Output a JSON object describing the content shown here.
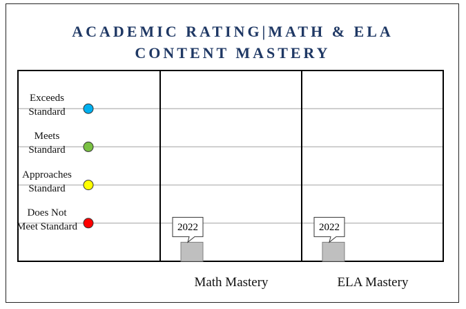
{
  "chart_data": {
    "type": "bar",
    "title": "ACADEMIC RATING|MATH & ELA CONTENT MASTERY",
    "categories": [
      "Math Mastery",
      "ELA Mastery"
    ],
    "series": [
      {
        "name": "2022",
        "color": "#bfbfbf",
        "values": [
          0.5,
          0.5
        ]
      }
    ],
    "ylim": [
      0,
      5
    ],
    "yticks": [
      {
        "value": 1,
        "label": "Does Not Meet Standard"
      },
      {
        "value": 2,
        "label": "Approaches Standard"
      },
      {
        "value": 3,
        "label": "Meets Standard"
      },
      {
        "value": 4,
        "label": "Exceeds Standard"
      }
    ],
    "ytick_colors": [
      "#ff0000",
      "#ffff00",
      "#7ac143",
      "#00b0f0"
    ],
    "grid": true
  }
}
